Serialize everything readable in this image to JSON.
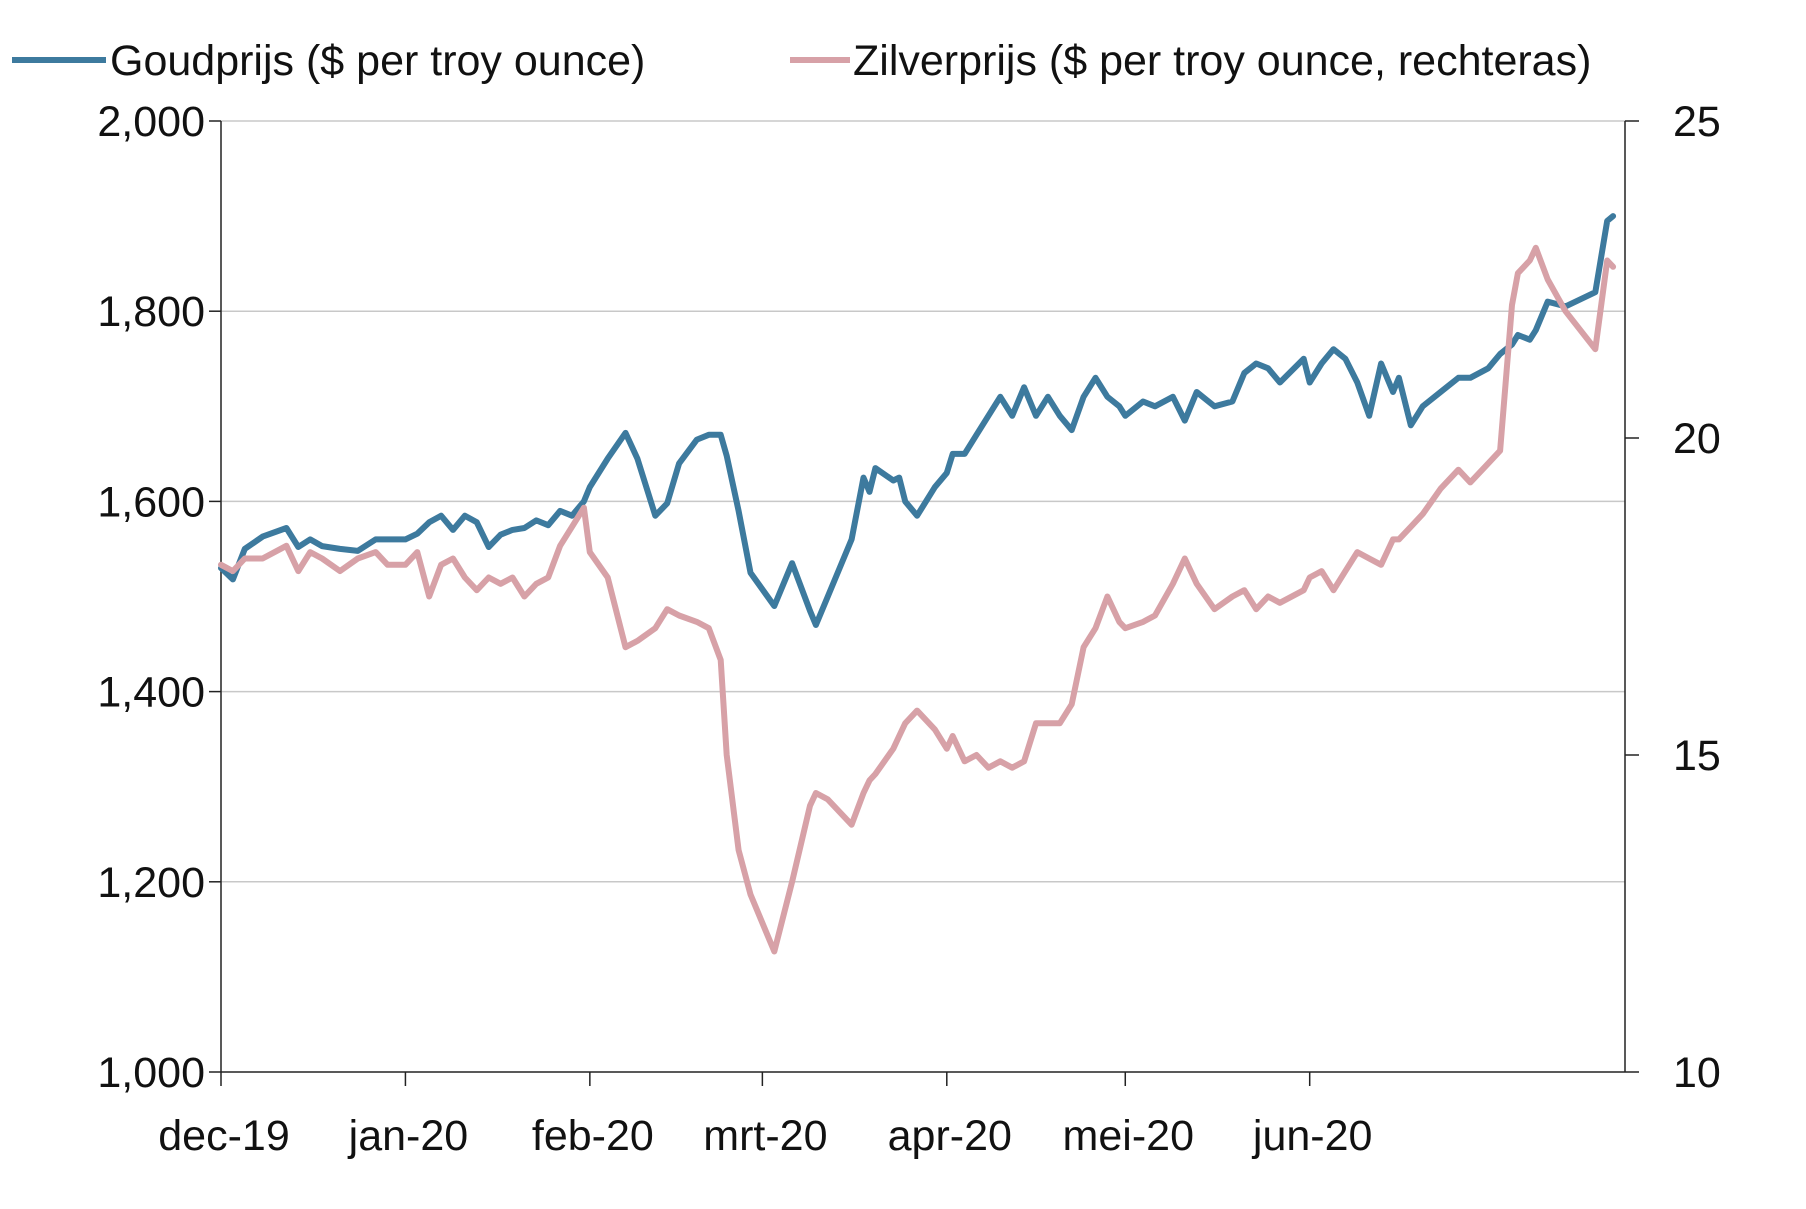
{
  "chart_data": {
    "type": "line",
    "title": "",
    "xlabel": "",
    "ylabel": "",
    "y2label": "",
    "grid": true,
    "legend_position": "top",
    "x_ticks": [
      "dec-19",
      "jan-20",
      "feb-20",
      "mrt-20",
      "apr-20",
      "mei-20",
      "jun-20"
    ],
    "y_left": {
      "min": 1000,
      "max": 2000,
      "ticks": [
        "1,000",
        "1,200",
        "1,400",
        "1,600",
        "1,800",
        "2,000"
      ]
    },
    "y_right": {
      "min": 10,
      "max": 25,
      "ticks": [
        "10",
        "15",
        "20",
        "25"
      ]
    },
    "series": [
      {
        "name": "Goudprijs ($ per troy ounce)",
        "axis": "left",
        "color": "#3D7A9E",
        "x": [
          "2019-12-01",
          "2019-12-03",
          "2019-12-05",
          "2019-12-08",
          "2019-12-12",
          "2019-12-14",
          "2019-12-16",
          "2019-12-18",
          "2019-12-21",
          "2019-12-24",
          "2019-12-27",
          "2019-12-29",
          "2020-01-01",
          "2020-01-03",
          "2020-01-05",
          "2020-01-07",
          "2020-01-09",
          "2020-01-11",
          "2020-01-13",
          "2020-01-15",
          "2020-01-17",
          "2020-01-19",
          "2020-01-21",
          "2020-01-23",
          "2020-01-25",
          "2020-01-27",
          "2020-01-29",
          "2020-01-31",
          "2020-02-01",
          "2020-02-04",
          "2020-02-07",
          "2020-02-09",
          "2020-02-12",
          "2020-02-14",
          "2020-02-16",
          "2020-02-19",
          "2020-02-21",
          "2020-02-23",
          "2020-02-24",
          "2020-02-26",
          "2020-02-28",
          "2020-03-03",
          "2020-03-06",
          "2020-03-09",
          "2020-03-10",
          "2020-03-12",
          "2020-03-16",
          "2020-03-18",
          "2020-03-19",
          "2020-03-20",
          "2020-03-23",
          "2020-03-24",
          "2020-03-25",
          "2020-03-27",
          "2020-03-30",
          "2020-04-01",
          "2020-04-02",
          "2020-04-04",
          "2020-04-06",
          "2020-04-08",
          "2020-04-10",
          "2020-04-12",
          "2020-04-14",
          "2020-04-16",
          "2020-04-18",
          "2020-04-20",
          "2020-04-22",
          "2020-04-24",
          "2020-04-26",
          "2020-04-28",
          "2020-04-30",
          "2020-05-01",
          "2020-05-04",
          "2020-05-06",
          "2020-05-09",
          "2020-05-11",
          "2020-05-13",
          "2020-05-16",
          "2020-05-19",
          "2020-05-21",
          "2020-05-23",
          "2020-05-25",
          "2020-05-27",
          "2020-05-31",
          "2020-06-01",
          "2020-06-03",
          "2020-06-05",
          "2020-06-07",
          "2020-06-09",
          "2020-06-11",
          "2020-06-13",
          "2020-06-15",
          "2020-06-16",
          "2020-06-18",
          "2020-06-20",
          "2020-06-23",
          "2020-06-26",
          "2020-06-28",
          "2020-07-01",
          "2020-07-03",
          "2020-07-05",
          "2020-07-06",
          "2020-07-08",
          "2020-07-09",
          "2020-07-11",
          "2020-07-14",
          "2020-07-19",
          "2020-07-21",
          "2020-07-22"
        ],
        "values": [
          1530,
          1518,
          1550,
          1563,
          1572,
          1552,
          1560,
          1553,
          1550,
          1548,
          1560,
          1560,
          1560,
          1566,
          1578,
          1585,
          1570,
          1585,
          1578,
          1552,
          1565,
          1570,
          1572,
          1580,
          1575,
          1590,
          1585,
          1600,
          1615,
          1645,
          1672,
          1645,
          1585,
          1598,
          1640,
          1665,
          1670,
          1670,
          1648,
          1590,
          1525,
          1490,
          1535,
          1485,
          1470,
          1500,
          1560,
          1625,
          1610,
          1635,
          1622,
          1625,
          1600,
          1585,
          1615,
          1630,
          1650,
          1650,
          1670,
          1690,
          1710,
          1690,
          1720,
          1690,
          1710,
          1690,
          1675,
          1710,
          1730,
          1710,
          1700,
          1690,
          1705,
          1700,
          1710,
          1685,
          1715,
          1700,
          1705,
          1735,
          1745,
          1740,
          1725,
          1750,
          1725,
          1745,
          1760,
          1750,
          1725,
          1690,
          1745,
          1715,
          1730,
          1680,
          1700,
          1715,
          1730,
          1730,
          1740,
          1755,
          1765,
          1775,
          1770,
          1780,
          1810,
          1805,
          1820,
          1895,
          1900
        ],
        "note": ""
      },
      {
        "name": "Zilverprijs ($ per troy ounce, rechteras)",
        "axis": "right",
        "color": "#D7A1A7",
        "x": [
          "2019-12-01",
          "2019-12-03",
          "2019-12-05",
          "2019-12-08",
          "2019-12-12",
          "2019-12-14",
          "2019-12-16",
          "2019-12-18",
          "2019-12-21",
          "2019-12-24",
          "2019-12-27",
          "2019-12-29",
          "2020-01-01",
          "2020-01-03",
          "2020-01-05",
          "2020-01-07",
          "2020-01-09",
          "2020-01-11",
          "2020-01-13",
          "2020-01-15",
          "2020-01-17",
          "2020-01-19",
          "2020-01-21",
          "2020-01-23",
          "2020-01-25",
          "2020-01-27",
          "2020-01-29",
          "2020-01-31",
          "2020-02-01",
          "2020-02-04",
          "2020-02-07",
          "2020-02-09",
          "2020-02-12",
          "2020-02-14",
          "2020-02-16",
          "2020-02-19",
          "2020-02-21",
          "2020-02-23",
          "2020-02-24",
          "2020-02-26",
          "2020-02-28",
          "2020-03-03",
          "2020-03-06",
          "2020-03-09",
          "2020-03-10",
          "2020-03-12",
          "2020-03-16",
          "2020-03-18",
          "2020-03-19",
          "2020-03-20",
          "2020-03-23",
          "2020-03-24",
          "2020-03-25",
          "2020-03-27",
          "2020-03-30",
          "2020-04-01",
          "2020-04-02",
          "2020-04-04",
          "2020-04-06",
          "2020-04-08",
          "2020-04-10",
          "2020-04-12",
          "2020-04-14",
          "2020-04-16",
          "2020-04-18",
          "2020-04-20",
          "2020-04-22",
          "2020-04-24",
          "2020-04-26",
          "2020-04-28",
          "2020-04-30",
          "2020-05-01",
          "2020-05-04",
          "2020-05-06",
          "2020-05-09",
          "2020-05-11",
          "2020-05-13",
          "2020-05-16",
          "2020-05-19",
          "2020-05-21",
          "2020-05-23",
          "2020-05-25",
          "2020-05-27",
          "2020-05-31",
          "2020-06-01",
          "2020-06-03",
          "2020-06-05",
          "2020-06-07",
          "2020-06-09",
          "2020-06-11",
          "2020-06-13",
          "2020-06-15",
          "2020-06-16",
          "2020-06-18",
          "2020-06-20",
          "2020-06-23",
          "2020-06-26",
          "2020-06-28",
          "2020-07-01",
          "2020-07-03",
          "2020-07-05",
          "2020-07-06",
          "2020-07-08",
          "2020-07-09",
          "2020-07-11",
          "2020-07-14",
          "2020-07-19",
          "2020-07-21",
          "2020-07-22"
        ],
        "values": [
          18.0,
          17.9,
          18.1,
          18.1,
          18.3,
          17.9,
          18.2,
          18.1,
          17.9,
          18.1,
          18.2,
          18.0,
          18.0,
          18.2,
          17.5,
          18.0,
          18.1,
          17.8,
          17.6,
          17.8,
          17.7,
          17.8,
          17.5,
          17.7,
          17.8,
          18.3,
          18.6,
          18.9,
          18.2,
          17.8,
          16.7,
          16.8,
          17.0,
          17.3,
          17.2,
          17.1,
          17.0,
          16.5,
          15.0,
          13.5,
          12.8,
          11.9,
          13.0,
          14.2,
          14.4,
          14.3,
          13.9,
          14.4,
          14.6,
          14.7,
          15.1,
          15.3,
          15.5,
          15.7,
          15.4,
          15.1,
          15.3,
          14.9,
          15.0,
          14.8,
          14.9,
          14.8,
          14.9,
          15.5,
          15.5,
          15.5,
          15.8,
          16.7,
          17.0,
          17.5,
          17.1,
          17.0,
          17.1,
          17.2,
          17.7,
          18.1,
          17.7,
          17.3,
          17.5,
          17.6,
          17.3,
          17.5,
          17.4,
          17.6,
          17.8,
          17.9,
          17.6,
          17.9,
          18.2,
          18.1,
          18.0,
          18.4,
          18.4,
          18.6,
          18.8,
          19.2,
          19.5,
          19.3,
          19.6,
          19.8,
          22.1,
          22.6,
          22.8,
          23.0,
          22.5,
          22.0,
          21.4,
          22.8,
          22.7
        ],
        "note": ""
      }
    ]
  }
}
